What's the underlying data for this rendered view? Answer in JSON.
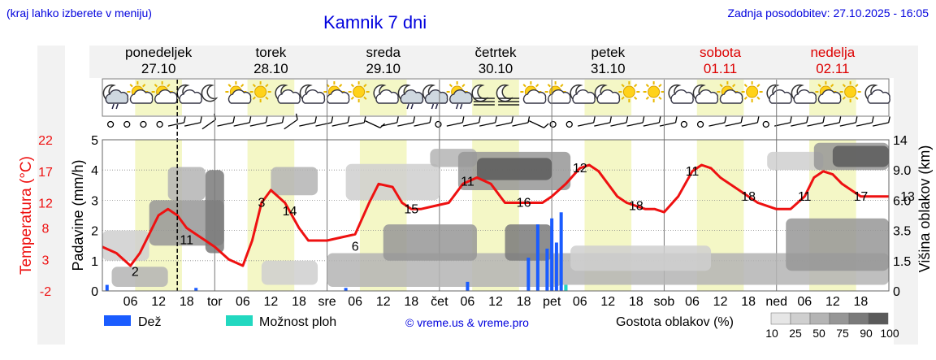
{
  "header": {
    "hint": "(kraj lahko izberete v meniju)",
    "title": "Kamnik 7 dni",
    "updated": "Zadnja posodobitev: 27.10.2025 - 16:05"
  },
  "days": [
    {
      "name": "ponedeljek",
      "date": "27.10",
      "weekend": false
    },
    {
      "name": "torek",
      "date": "28.10",
      "weekend": false
    },
    {
      "name": "sreda",
      "date": "29.10",
      "weekend": false
    },
    {
      "name": "četrtek",
      "date": "30.10",
      "weekend": false
    },
    {
      "name": "petek",
      "date": "31.10",
      "weekend": false
    },
    {
      "name": "sobota",
      "date": "01.11",
      "weekend": true
    },
    {
      "name": "nedelja",
      "date": "02.11",
      "weekend": true
    }
  ],
  "x_axis": {
    "day_abbr": [
      "tor",
      "sre",
      "čet",
      "pet",
      "sob",
      "ned"
    ],
    "hours": [
      "06",
      "12",
      "18"
    ]
  },
  "axes": {
    "temp_label": "Temperatura (°C)",
    "temp_ticks": [
      "22",
      "17",
      "12",
      "8",
      "3",
      "-2"
    ],
    "precip_label": "Padavine (mm/h)",
    "precip_ticks": [
      "5",
      "4",
      "3",
      "2",
      "1",
      "0"
    ],
    "cloud_label": "Višina oblakov (km)",
    "cloud_ticks": [
      "14",
      "9.0",
      "6.0",
      "3.5",
      "1.5",
      "0"
    ]
  },
  "legend": {
    "rain": "Dež",
    "showers": "Možnost ploh",
    "credit": "© vreme.us & vreme.pro",
    "density_label": "Gostota oblakov (%)",
    "density_values": [
      "10",
      "25",
      "50",
      "75",
      "90",
      "100"
    ],
    "density_colors": [
      "#e6e6e6",
      "#cfcfcf",
      "#b4b4b4",
      "#969696",
      "#7a7a7a",
      "#5a5a5a"
    ]
  },
  "colors": {
    "temperature": "#ee1111",
    "rain": "#1a5cff",
    "showers": "#22d8c0",
    "daylight": "#f4f7c6",
    "weekend": "#dd0000",
    "title": "#0000dd"
  },
  "chart_data": {
    "type": "line",
    "title": "Kamnik 7 dni",
    "x_unit": "hours since 27.10 00:00",
    "temperature": {
      "name": "Temperatura (°C)",
      "x": [
        0,
        3,
        6,
        8,
        10,
        12,
        14,
        16,
        18,
        20,
        22,
        24,
        27,
        30,
        32,
        34,
        36,
        39,
        42,
        44,
        46,
        48,
        51,
        54,
        57,
        59,
        62,
        64,
        66,
        68,
        71,
        74,
        77,
        80,
        83,
        86,
        88,
        90,
        92,
        94,
        96,
        99,
        102,
        104,
        106,
        108,
        110,
        112,
        114,
        116,
        118,
        120,
        123,
        126,
        128,
        130,
        132,
        134,
        136,
        138,
        140,
        142,
        144,
        147,
        150,
        152,
        154,
        156,
        158,
        160,
        162,
        164,
        166,
        168
      ],
      "y": [
        5,
        4,
        2,
        4,
        7,
        10,
        11,
        10,
        8,
        7,
        6,
        5,
        3,
        2,
        6,
        12,
        14,
        12,
        8,
        6,
        6,
        6,
        6.5,
        7,
        12,
        15,
        14.5,
        12,
        11,
        11,
        11.5,
        12,
        15,
        16,
        15,
        12,
        12,
        12,
        12,
        12,
        13,
        15,
        17.5,
        18,
        17,
        15,
        13,
        12,
        11.5,
        11,
        11,
        10.5,
        13,
        17,
        18,
        17.5,
        16,
        15,
        14,
        13,
        12,
        11.5,
        11,
        11,
        13,
        16,
        17,
        16.5,
        15,
        14,
        13,
        13,
        13,
        13
      ],
      "labels": [
        {
          "x": 7,
          "v": "2"
        },
        {
          "x": 18,
          "v": "11"
        },
        {
          "x": 34,
          "v": "3"
        },
        {
          "x": 40,
          "v": "14"
        },
        {
          "x": 54,
          "v": "6"
        },
        {
          "x": 66,
          "v": "15"
        },
        {
          "x": 78,
          "v": "11"
        },
        {
          "x": 90,
          "v": "16"
        },
        {
          "x": 102,
          "v": "12"
        },
        {
          "x": 114,
          "v": "18"
        },
        {
          "x": 126,
          "v": "11"
        },
        {
          "x": 138,
          "v": "18"
        },
        {
          "x": 150,
          "v": "11"
        },
        {
          "x": 162,
          "v": "17"
        },
        {
          "x": 172,
          "v": "13"
        }
      ]
    },
    "precipitation": {
      "name": "Dež",
      "x": [
        1,
        20,
        52,
        78,
        91,
        93,
        95,
        96,
        97,
        98,
        99
      ],
      "y": [
        0.2,
        0.1,
        0.1,
        0.3,
        1.1,
        2.2,
        1.4,
        2.4,
        1.6,
        2.6,
        0.2
      ],
      "showers_x": [
        99
      ],
      "showers_y": [
        0.2
      ]
    },
    "cloud_density_bands": [
      {
        "x0": 0,
        "x1": 10,
        "y0": 1.5,
        "y1": 3.5,
        "level": 1
      },
      {
        "x0": 2,
        "x1": 14,
        "y0": 0.2,
        "y1": 1.2,
        "level": 2
      },
      {
        "x0": 10,
        "x1": 26,
        "y0": 2.5,
        "y1": 6.0,
        "level": 3
      },
      {
        "x0": 14,
        "x1": 22,
        "y0": 6.0,
        "y1": 9.5,
        "level": 2
      },
      {
        "x0": 22,
        "x1": 26,
        "y0": 2.0,
        "y1": 9.0,
        "level": 4
      },
      {
        "x0": 34,
        "x1": 46,
        "y0": 0.3,
        "y1": 1.5,
        "level": 1
      },
      {
        "x0": 36,
        "x1": 46,
        "y0": 6.5,
        "y1": 9.5,
        "level": 2
      },
      {
        "x0": 52,
        "x1": 72,
        "y0": 6.0,
        "y1": 10.0,
        "level": 1
      },
      {
        "x0": 48,
        "x1": 98,
        "y0": 0.2,
        "y1": 2.0,
        "level": 2
      },
      {
        "x0": 60,
        "x1": 80,
        "y0": 1.5,
        "y1": 4.0,
        "level": 3
      },
      {
        "x0": 70,
        "x1": 80,
        "y0": 9.5,
        "y1": 12.5,
        "level": 2
      },
      {
        "x0": 76,
        "x1": 100,
        "y0": 7.0,
        "y1": 12.0,
        "level": 3
      },
      {
        "x0": 80,
        "x1": 96,
        "y0": 8.0,
        "y1": 11.0,
        "level": 5
      },
      {
        "x0": 86,
        "x1": 96,
        "y0": 1.5,
        "y1": 4.0,
        "level": 4
      },
      {
        "x0": 96,
        "x1": 168,
        "y0": 0.3,
        "y1": 2.0,
        "level": 2
      },
      {
        "x0": 100,
        "x1": 130,
        "y0": 1.0,
        "y1": 2.5,
        "level": 1
      },
      {
        "x0": 142,
        "x1": 154,
        "y0": 9.0,
        "y1": 12.0,
        "level": 1
      },
      {
        "x0": 146,
        "x1": 168,
        "y0": 1.0,
        "y1": 4.5,
        "level": 3
      },
      {
        "x0": 152,
        "x1": 168,
        "y0": 9.0,
        "y1": 13.5,
        "level": 3
      },
      {
        "x0": 156,
        "x1": 168,
        "y0": 9.5,
        "y1": 13.0,
        "level": 5
      }
    ],
    "daylight": [
      [
        7,
        17
      ],
      [
        31,
        41
      ],
      [
        55,
        65
      ],
      [
        79,
        89
      ],
      [
        103,
        113
      ],
      [
        127,
        137
      ],
      [
        151,
        161
      ]
    ],
    "now_x": 16,
    "xlim": [
      0,
      168
    ],
    "ylim_temperature": [
      -2,
      22
    ],
    "ylim_precip": [
      0,
      5
    ],
    "weather_icons": [
      "moon-rain",
      "sun-cloud",
      "sun-cloud",
      "moon-cloud",
      "moon",
      "sun-cloud",
      "sun",
      "moon-cloud",
      "moon-cloud",
      "sun-cloud",
      "sun",
      "moon-cloud",
      "moon-rain",
      "moon-rain",
      "sun-rain",
      "moon-fog",
      "moon-fog",
      "sun-cloud",
      "sun-cloud",
      "moon-cloud",
      "moon-cloud",
      "sun",
      "sun",
      "moon-cloud",
      "moon-cloud",
      "sun-cloud",
      "sun",
      "moon-cloud",
      "moon-cloud",
      "sun-cloud",
      "sun",
      "moon-cloud"
    ],
    "wind": [
      "calm",
      "calm",
      "calm",
      "calm",
      "w",
      "w",
      "nw",
      "w",
      "w",
      "w",
      "w",
      "nw",
      "w",
      "w",
      "w",
      "w",
      "sw",
      "w",
      "w",
      "w",
      "calm",
      "w",
      "w",
      "w",
      "w",
      "w",
      "sw",
      "calm",
      "calm",
      "w",
      "w",
      "w",
      "w",
      "w",
      "w",
      "calm",
      "calm",
      "w",
      "w",
      "w",
      "calm",
      "w",
      "w",
      "w",
      "w",
      "w",
      "w",
      "w"
    ]
  }
}
